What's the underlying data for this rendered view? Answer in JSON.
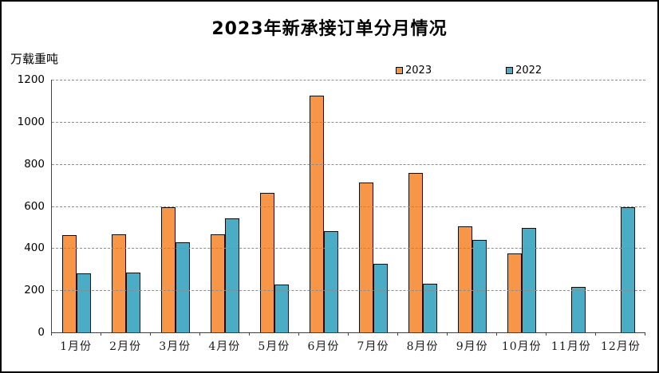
{
  "chart_data": {
    "type": "bar",
    "title": "2023年新承接订单分月情况",
    "ylabel": "万载重吨",
    "xlabel": "",
    "categories": [
      "1月份",
      "2月份",
      "3月份",
      "4月份",
      "5月份",
      "6月份",
      "7月份",
      "8月份",
      "9月份",
      "10月份",
      "11月份",
      "12月份"
    ],
    "series": [
      {
        "name": "2023",
        "color": "#F79646",
        "values": [
          460,
          463,
          593,
          465,
          659,
          1122,
          709,
          755,
          502,
          373,
          null,
          null
        ]
      },
      {
        "name": "2022",
        "color": "#4BACC6",
        "values": [
          278,
          282,
          427,
          541,
          228,
          478,
          323,
          232,
          437,
          494,
          216,
          591
        ]
      }
    ],
    "ylim": [
      0,
      1200
    ],
    "ytick_step": 200,
    "grid": true,
    "gridline_style": "dashed",
    "legend_position": "top",
    "bar_border_color": "#0d0d0d",
    "background_color": "#ffffff"
  }
}
